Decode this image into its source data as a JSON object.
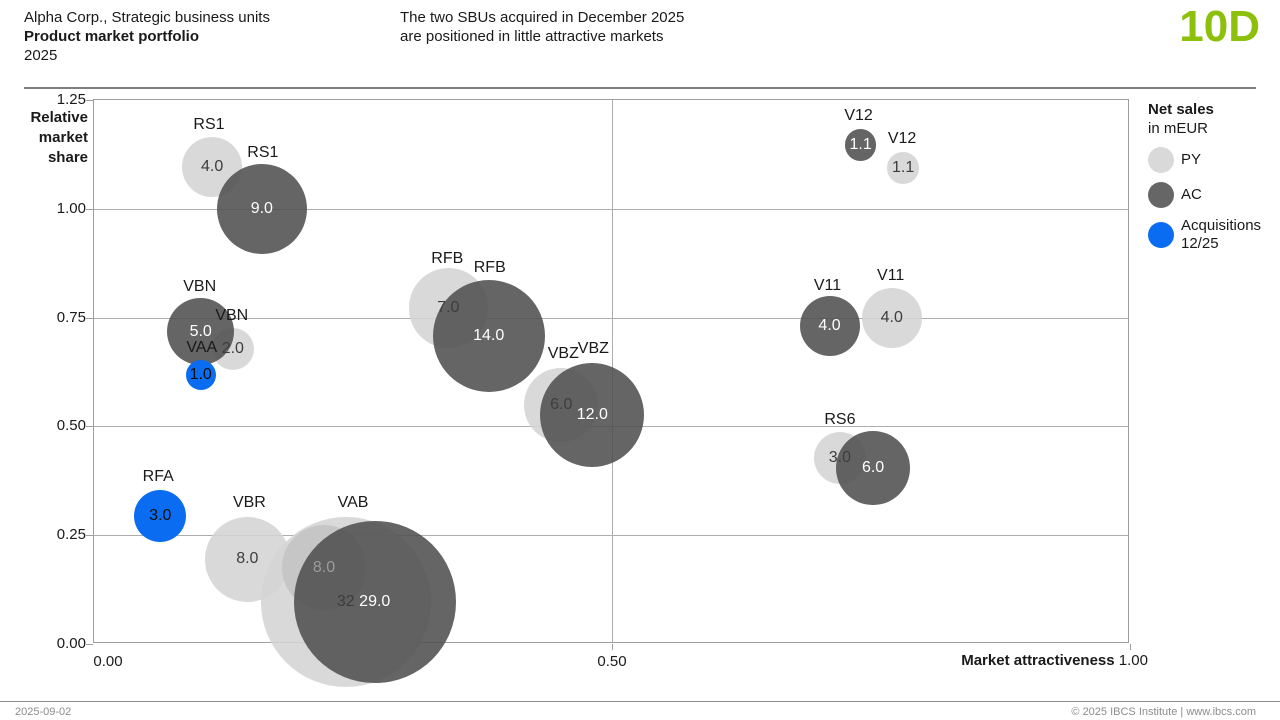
{
  "header": {
    "title_line1": "Alpha Corp., Strategic business units",
    "title_line2": "Product market portfolio",
    "title_line3": "2025",
    "message_line1": "The two SBUs acquired in December 2025",
    "message_line2": "are positioned in little attractive markets"
  },
  "page_tag": {
    "label": "10D",
    "color": "#8cc00a"
  },
  "legend": {
    "title": "Net sales",
    "subtitle": "in mEUR",
    "items": [
      {
        "key": "PY",
        "label": "PY",
        "color": "#d9d9d9"
      },
      {
        "key": "AC",
        "label": "AC",
        "color": "#666666"
      },
      {
        "key": "ACQ",
        "label": "Acquisitions",
        "label2": "12/25",
        "color": "#0a6cf0"
      }
    ]
  },
  "footer": {
    "date": "2025-09-02",
    "copyright": "© 2025 IBCS Institute | www.ibcs.com"
  },
  "chart_data": {
    "type": "scatter",
    "subtype": "bubble-portfolio",
    "xlabel": "Market attractiveness",
    "ylabel": "Relative market share",
    "xlim": [
      0.0,
      1.0
    ],
    "ylim": [
      0.0,
      1.25
    ],
    "x_ticks": [
      0.0,
      0.5,
      1.0
    ],
    "y_ticks": [
      0.0,
      0.25,
      0.5,
      0.75,
      1.0,
      1.25
    ],
    "x_max_label": "1.00",
    "grid": true,
    "bubble_scale": 15,
    "series_legend": [
      "PY",
      "AC",
      "Acquisitions 12/25"
    ],
    "bubbles": [
      {
        "sbu": "RS1",
        "series": "PY",
        "x": 0.114,
        "y": 1.096,
        "value": 4.0,
        "label_style": "dark"
      },
      {
        "sbu": "RS1",
        "series": "AC",
        "x": 0.162,
        "y": 1.0,
        "value": 9.0,
        "label_style": "white"
      },
      {
        "sbu": "VBN",
        "series": "PY",
        "x": 0.134,
        "y": 0.678,
        "value": 2.0,
        "label_style": "dark"
      },
      {
        "sbu": "VBN",
        "series": "AC",
        "x": 0.103,
        "y": 0.717,
        "value": 5.0,
        "label_style": "white"
      },
      {
        "sbu": "VAA",
        "series": "ACQ",
        "x": 0.103,
        "y": 0.618,
        "value": 1.0,
        "label_style": "black"
      },
      {
        "sbu": "RFB",
        "series": "PY",
        "x": 0.342,
        "y": 0.772,
        "value": 7.0,
        "label_style": "dark"
      },
      {
        "sbu": "RFB",
        "series": "AC",
        "x": 0.381,
        "y": 0.708,
        "value": 14.0,
        "label_style": "white"
      },
      {
        "sbu": "VBZ",
        "series": "PY",
        "x": 0.451,
        "y": 0.549,
        "value": 6.0,
        "label_style": "dark"
      },
      {
        "sbu": "VBZ",
        "series": "AC",
        "x": 0.481,
        "y": 0.526,
        "value": 12.0,
        "label_style": "white"
      },
      {
        "sbu": "V12",
        "series": "AC",
        "x": 0.74,
        "y": 1.147,
        "value": 1.1,
        "label_style": "white"
      },
      {
        "sbu": "V12",
        "series": "PY",
        "x": 0.781,
        "y": 1.094,
        "value": 1.1,
        "label_style": "dark"
      },
      {
        "sbu": "V11",
        "series": "AC",
        "x": 0.71,
        "y": 0.731,
        "value": 4.0,
        "label_style": "white"
      },
      {
        "sbu": "V11",
        "series": "PY",
        "x": 0.77,
        "y": 0.749,
        "value": 4.0,
        "label_style": "dark"
      },
      {
        "sbu": "RS6",
        "series": "PY",
        "x": 0.72,
        "y": 0.427,
        "value": 3.0,
        "label_style": "dark"
      },
      {
        "sbu": "RS6",
        "series": "AC",
        "x": 0.752,
        "y": 0.404,
        "value": 6.0,
        "label_style": "white"
      },
      {
        "sbu": "RFA",
        "series": "ACQ",
        "x": 0.064,
        "y": 0.294,
        "value": 3.0,
        "label_style": "black"
      },
      {
        "sbu": "VBR",
        "series": "PY",
        "x": 0.148,
        "y": 0.195,
        "value": 8.0,
        "label_style": "dark"
      },
      {
        "sbu": "VBR",
        "series": "AC",
        "x": 0.222,
        "y": 0.175,
        "value": 8.0,
        "label_style": "dim"
      },
      {
        "sbu": "VAB",
        "series": "PY",
        "x": 0.243,
        "y": 0.097,
        "value": 32.0,
        "value_label": "32",
        "label_style": "dark"
      },
      {
        "sbu": "VAB",
        "series": "AC",
        "x": 0.271,
        "y": 0.097,
        "value": 29.0,
        "label_style": "white"
      }
    ],
    "labels": [
      {
        "text": "RS1",
        "x": 0.111,
        "y": 1.193
      },
      {
        "text": "RS1",
        "x": 0.163,
        "y": 1.128
      },
      {
        "text": "VBN",
        "x": 0.102,
        "y": 0.82
      },
      {
        "text": "VBN",
        "x": 0.133,
        "y": 0.754
      },
      {
        "text": "VAA",
        "x": 0.104,
        "y": 0.68
      },
      {
        "text": "RFB",
        "x": 0.341,
        "y": 0.885
      },
      {
        "text": "RFB",
        "x": 0.382,
        "y": 0.864
      },
      {
        "text": "VBZ",
        "x": 0.453,
        "y": 0.666
      },
      {
        "text": "VBZ",
        "x": 0.482,
        "y": 0.678
      },
      {
        "text": "V12",
        "x": 0.738,
        "y": 1.213
      },
      {
        "text": "V12",
        "x": 0.78,
        "y": 1.16
      },
      {
        "text": "V11",
        "x": 0.708,
        "y": 0.823
      },
      {
        "text": "V11",
        "x": 0.769,
        "y": 0.846
      },
      {
        "text": "RS6",
        "x": 0.72,
        "y": 0.515
      },
      {
        "text": "RFA",
        "x": 0.062,
        "y": 0.384
      },
      {
        "text": "VBR",
        "x": 0.15,
        "y": 0.324
      },
      {
        "text": "VAB",
        "x": 0.25,
        "y": 0.324
      }
    ],
    "colors": {
      "PY": "#d9d9d9",
      "AC": "#666666",
      "ACQ": "#0a6cf0"
    }
  }
}
